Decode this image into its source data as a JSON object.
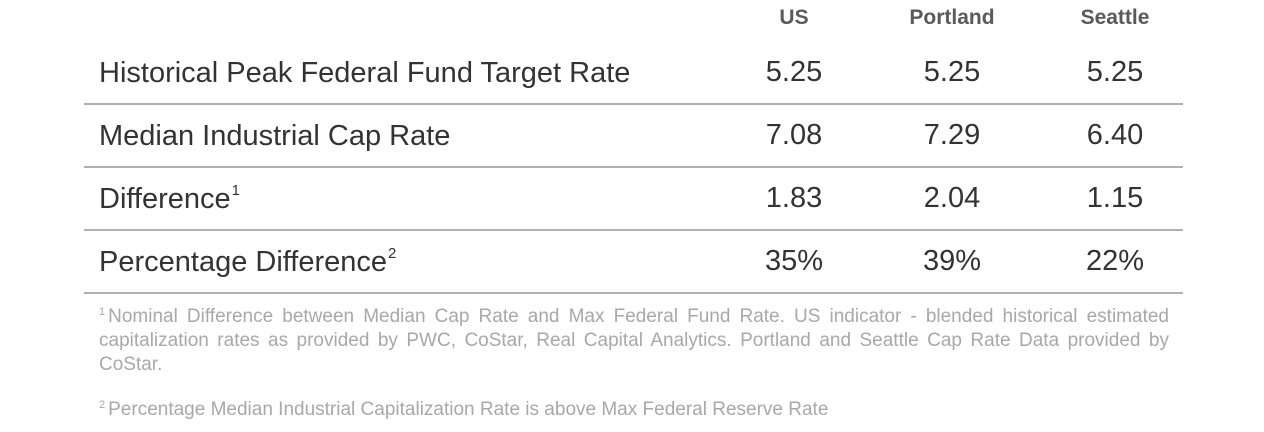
{
  "table": {
    "headers": [
      "US",
      "Portland",
      "Seattle"
    ],
    "rows": [
      {
        "label": "Historical Peak Federal Fund Target Rate",
        "sup": "",
        "values": [
          "5.25",
          "5.25",
          "5.25"
        ]
      },
      {
        "label": "Median Industrial Cap Rate",
        "sup": "",
        "values": [
          "7.08",
          "7.29",
          "6.40"
        ]
      },
      {
        "label": "Difference",
        "sup": "1",
        "values": [
          "1.83",
          "2.04",
          "1.15"
        ]
      },
      {
        "label": "Percentage Difference",
        "sup": "2",
        "values": [
          "35%",
          "39%",
          "22%"
        ]
      }
    ]
  },
  "footnotes": [
    {
      "marker": "1",
      "text": "Nominal Difference between Median Cap Rate and Max Federal Fund Rate. US indicator - blended historical estimated capitalization rates as provided by PWC, CoStar, Real Capital Analytics. Portland and Seattle Cap Rate Data provided by CoStar."
    },
    {
      "marker": "2",
      "text": "Percentage Median Industrial Capitalization Rate is above Max Federal Reserve Rate"
    }
  ]
}
